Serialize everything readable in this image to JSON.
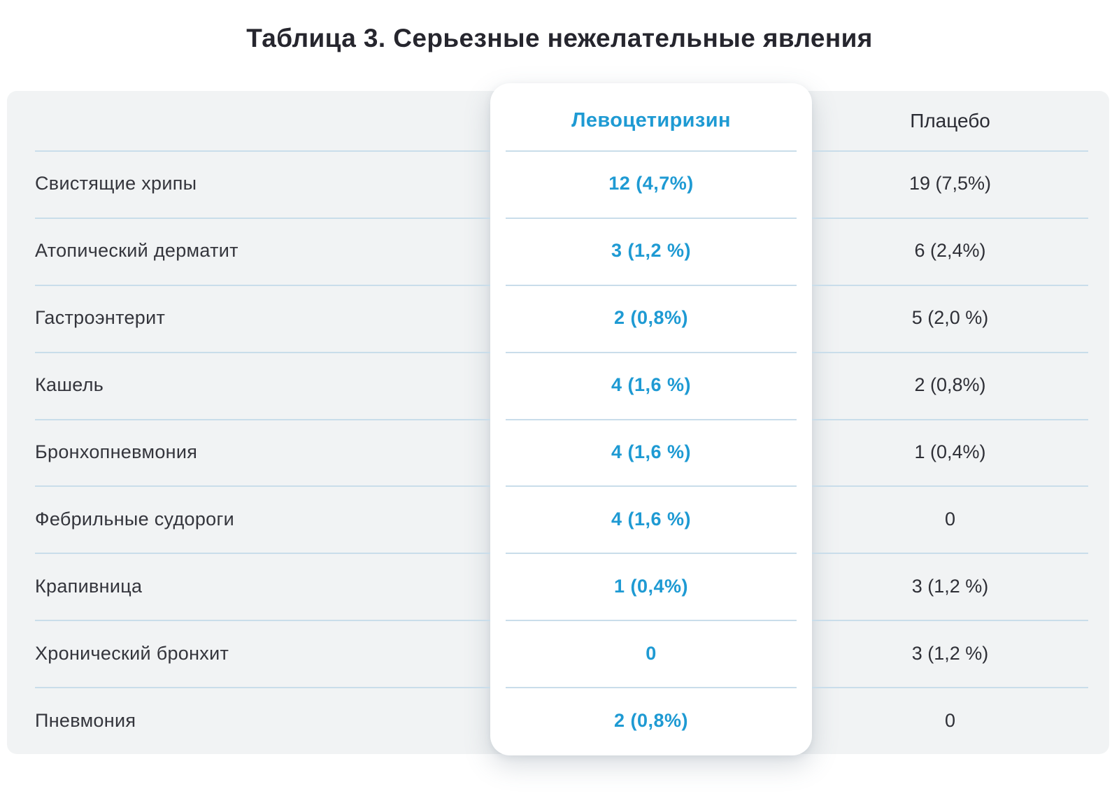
{
  "chart_data": {
    "type": "table",
    "title": "Таблица 3. Серьезные нежелательные явления",
    "columns": [
      "",
      "Левоцетиризин",
      "Плацебо"
    ],
    "highlighted_column": "Левоцетиризин",
    "header": {
      "treatment": "Левоцетиризин",
      "placebo": "Плацебо"
    },
    "rows": [
      {
        "name": "Свистящие хрипы",
        "levocetirizine": "12 (4,7%)",
        "placebo": "19 (7,5%)"
      },
      {
        "name": "Атопический дерматит",
        "levocetirizine": "3 (1,2 %)",
        "placebo": "6 (2,4%)"
      },
      {
        "name": "Гастроэнтерит",
        "levocetirizine": "2 (0,8%)",
        "placebo": "5 (2,0 %)"
      },
      {
        "name": "Кашель",
        "levocetirizine": "4 (1,6 %)",
        "placebo": "2 (0,8%)"
      },
      {
        "name": "Бронхопневмония",
        "levocetirizine": "4 (1,6 %)",
        "placebo": "1 (0,4%)"
      },
      {
        "name": "Фебрильные судороги",
        "levocetirizine": "4 (1,6 %)",
        "placebo": "0"
      },
      {
        "name": "Крапивница",
        "levocetirizine": "1 (0,4%)",
        "placebo": "3 (1,2 %)"
      },
      {
        "name": "Хронический бронхит",
        "levocetirizine": "0",
        "placebo": "3 (1,2 %)"
      },
      {
        "name": "Пневмония",
        "levocetirizine": "2 (0,8%)",
        "placebo": "0"
      }
    ],
    "colors": {
      "accent_blue": "#1e9ad3",
      "divider_blue": "#c9ddea",
      "panel_background": "#f1f3f4",
      "card_background": "#ffffff",
      "text_dark": "#2e2f36"
    }
  }
}
